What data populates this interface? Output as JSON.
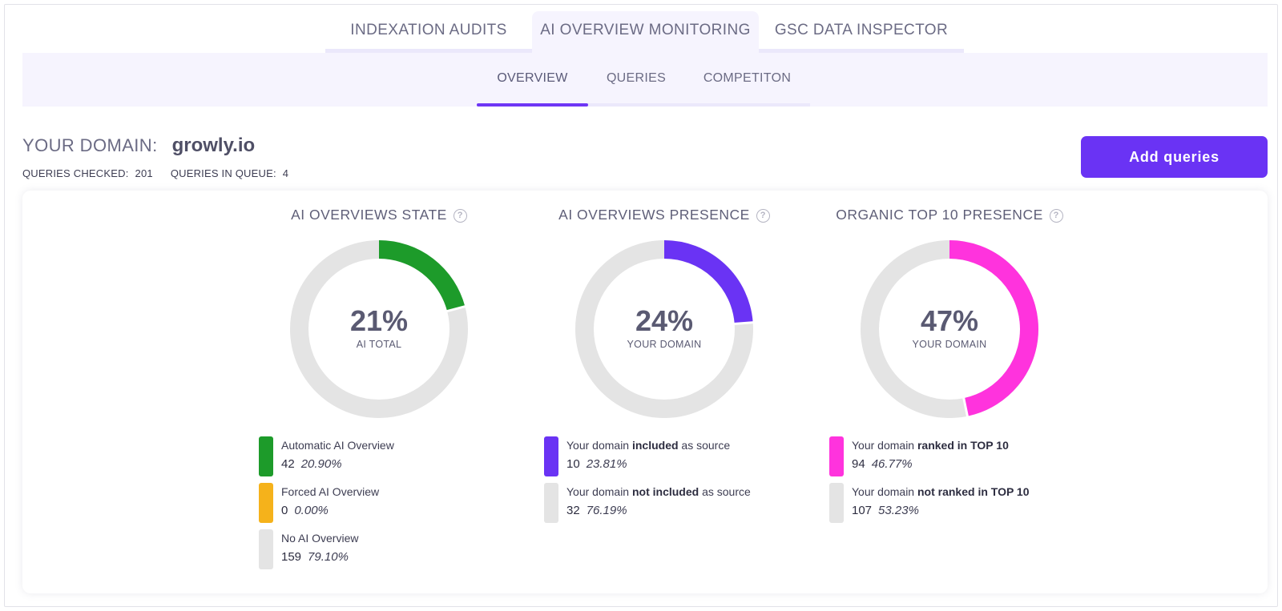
{
  "top_tabs": [
    "INDEXATION AUDITS",
    "AI OVERVIEW MONITORING",
    "GSC DATA INSPECTOR"
  ],
  "sub_tabs": [
    "OVERVIEW",
    "QUERIES",
    "COMPETITON"
  ],
  "domain": {
    "label": "YOUR DOMAIN:",
    "value": "growly.io",
    "queries_checked_label": "QUERIES CHECKED:",
    "queries_checked": "201",
    "queries_in_queue_label": "QUERIES IN QUEUE:",
    "queries_in_queue": "4"
  },
  "add_button": "Add queries",
  "panels": [
    {
      "title": "AI OVERVIEWS STATE",
      "percent": "21%",
      "sublabel": "AI TOTAL",
      "legend": [
        {
          "label_pre": "Automatic AI Overview",
          "label_bold": "",
          "label_post": "",
          "count": "42",
          "pct": "20.90%",
          "color": "#1d9b2a"
        },
        {
          "label_pre": "Forced AI Overview",
          "label_bold": "",
          "label_post": "",
          "count": "0",
          "pct": "0.00%",
          "color": "#f5b21b"
        },
        {
          "label_pre": "No AI Overview",
          "label_bold": "",
          "label_post": "",
          "count": "159",
          "pct": "79.10%",
          "color": "#e4e4e4"
        }
      ]
    },
    {
      "title": "AI OVERVIEWS PRESENCE",
      "percent": "24%",
      "sublabel": "YOUR DOMAIN",
      "legend": [
        {
          "label_pre": "Your domain ",
          "label_bold": "included",
          "label_post": " as source",
          "count": "10",
          "pct": "23.81%",
          "color": "#6a33f4"
        },
        {
          "label_pre": "Your domain ",
          "label_bold": "not included",
          "label_post": " as source",
          "count": "32",
          "pct": "76.19%",
          "color": "#e4e4e4"
        }
      ]
    },
    {
      "title": "ORGANIC TOP 10 PRESENCE",
      "percent": "47%",
      "sublabel": "YOUR DOMAIN",
      "legend": [
        {
          "label_pre": "Your domain ",
          "label_bold": "ranked in TOP 10",
          "label_post": "",
          "count": "94",
          "pct": "46.77%",
          "color": "#ff33dd"
        },
        {
          "label_pre": "Your domain ",
          "label_bold": "not ranked in TOP 10",
          "label_post": "",
          "count": "107",
          "pct": "53.23%",
          "color": "#e4e4e4"
        }
      ]
    }
  ],
  "colors": {
    "accent": "#6a33f4",
    "track": "#e4e4e4"
  },
  "chart_data": [
    {
      "type": "pie",
      "title": "AI OVERVIEWS STATE",
      "categories": [
        "Automatic AI Overview",
        "Forced AI Overview",
        "No AI Overview"
      ],
      "values": [
        42,
        0,
        159
      ]
    },
    {
      "type": "pie",
      "title": "AI OVERVIEWS PRESENCE",
      "categories": [
        "Your domain included as source",
        "Your domain not included as source"
      ],
      "values": [
        10,
        32
      ]
    },
    {
      "type": "pie",
      "title": "ORGANIC TOP 10 PRESENCE",
      "categories": [
        "Your domain ranked in TOP 10",
        "Your domain not ranked in TOP 10"
      ],
      "values": [
        94,
        107
      ]
    }
  ]
}
